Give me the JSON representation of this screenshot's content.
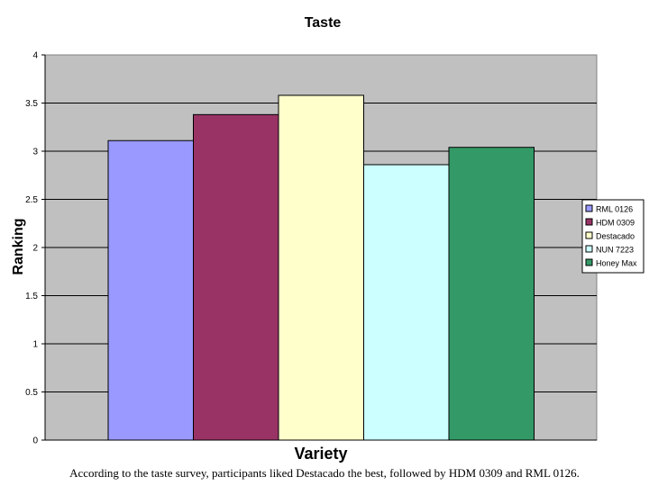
{
  "chart_data": {
    "type": "bar",
    "title": "Taste",
    "xlabel": "Variety",
    "ylabel": "Ranking",
    "ylim": [
      0,
      4
    ],
    "yticks": [
      "0",
      "0.5",
      "1",
      "1.5",
      "2",
      "2.5",
      "3",
      "3.5",
      "4"
    ],
    "grid": true,
    "legend_position": "right",
    "series": [
      {
        "name": "RML 0126",
        "value": 3.11,
        "color": "#9999ff"
      },
      {
        "name": "HDM 0309",
        "value": 3.38,
        "color": "#993366"
      },
      {
        "name": "Destacado",
        "value": 3.58,
        "color": "#ffffcc"
      },
      {
        "name": "NUN 7223",
        "value": 2.86,
        "color": "#ccffff"
      },
      {
        "name": "Honey Max",
        "value": 3.04,
        "color": "#339966"
      }
    ],
    "plot_background": "#c0c0c0"
  },
  "caption": "According to the taste survey, participants liked Destacado the best, followed by HDM 0309 and RML 0126."
}
